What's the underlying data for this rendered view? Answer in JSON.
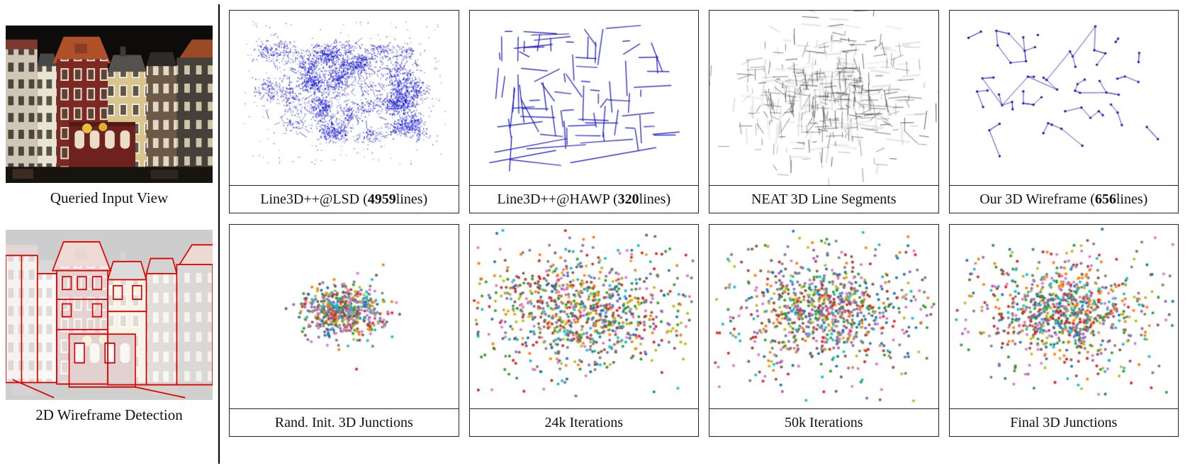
{
  "figure": {
    "left": {
      "top_caption": "Queried Input View",
      "bottom_caption": "2D Wireframe Detection"
    },
    "row1": [
      {
        "prefix": "Line3D++@LSD (",
        "bold": "4959",
        "suffix": " lines)"
      },
      {
        "prefix": "Line3D++@HAWP (",
        "bold": "320",
        "suffix": " lines)"
      },
      {
        "prefix": "NEAT 3D Line Segments",
        "bold": "",
        "suffix": ""
      },
      {
        "prefix": "Our 3D Wireframe (",
        "bold": "656",
        "suffix": " lines)"
      }
    ],
    "row2": [
      {
        "label": "Rand. Init. 3D Junctions"
      },
      {
        "label": "24k Iterations"
      },
      {
        "label": "50k Iterations"
      },
      {
        "label": "Final 3D Junctions"
      }
    ],
    "colors": {
      "line3d_blue": "#0a0ad0",
      "wireframe_blue": "#2525c8",
      "detection_red": "#e10000"
    }
  }
}
